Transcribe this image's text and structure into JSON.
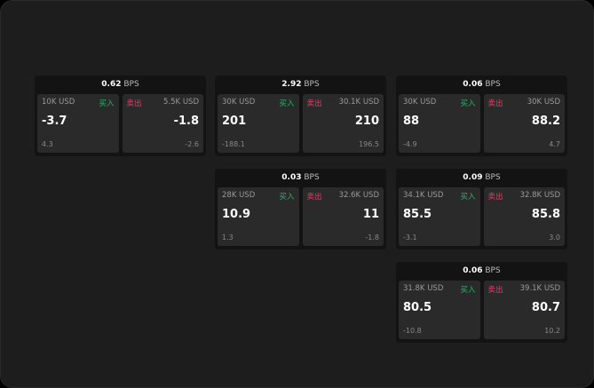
{
  "colors": {
    "buy": "#2fb36a",
    "sell": "#e0406a"
  },
  "labels": {
    "buy": "买入",
    "sell": "卖出",
    "unit": "BPS"
  },
  "cards": [
    {
      "spread": "0.62",
      "buy": {
        "size": "10K USD",
        "price": "-3.7",
        "change": "4.3"
      },
      "sell": {
        "size": "5.5K USD",
        "price": "-1.8",
        "change": "-2.6"
      }
    },
    {
      "spread": "2.92",
      "buy": {
        "size": "30K USD",
        "price": "201",
        "change": "-188.1"
      },
      "sell": {
        "size": "30.1K USD",
        "price": "210",
        "change": "196.5"
      }
    },
    {
      "spread": "0.06",
      "buy": {
        "size": "30K USD",
        "price": "88",
        "change": "-4.9"
      },
      "sell": {
        "size": "30K USD",
        "price": "88.2",
        "change": "4.7"
      }
    },
    {
      "spread": "0.03",
      "buy": {
        "size": "28K USD",
        "price": "10.9",
        "change": "1.3"
      },
      "sell": {
        "size": "32.6K USD",
        "price": "11",
        "change": "-1.8"
      }
    },
    {
      "spread": "0.09",
      "buy": {
        "size": "34.1K USD",
        "price": "85.5",
        "change": "-3.1"
      },
      "sell": {
        "size": "32.8K USD",
        "price": "85.8",
        "change": "3.0"
      }
    },
    {
      "spread": "0.06",
      "buy": {
        "size": "31.8K USD",
        "price": "80.5",
        "change": "-10.8"
      },
      "sell": {
        "size": "39.1K USD",
        "price": "80.7",
        "change": "10.2"
      }
    }
  ]
}
